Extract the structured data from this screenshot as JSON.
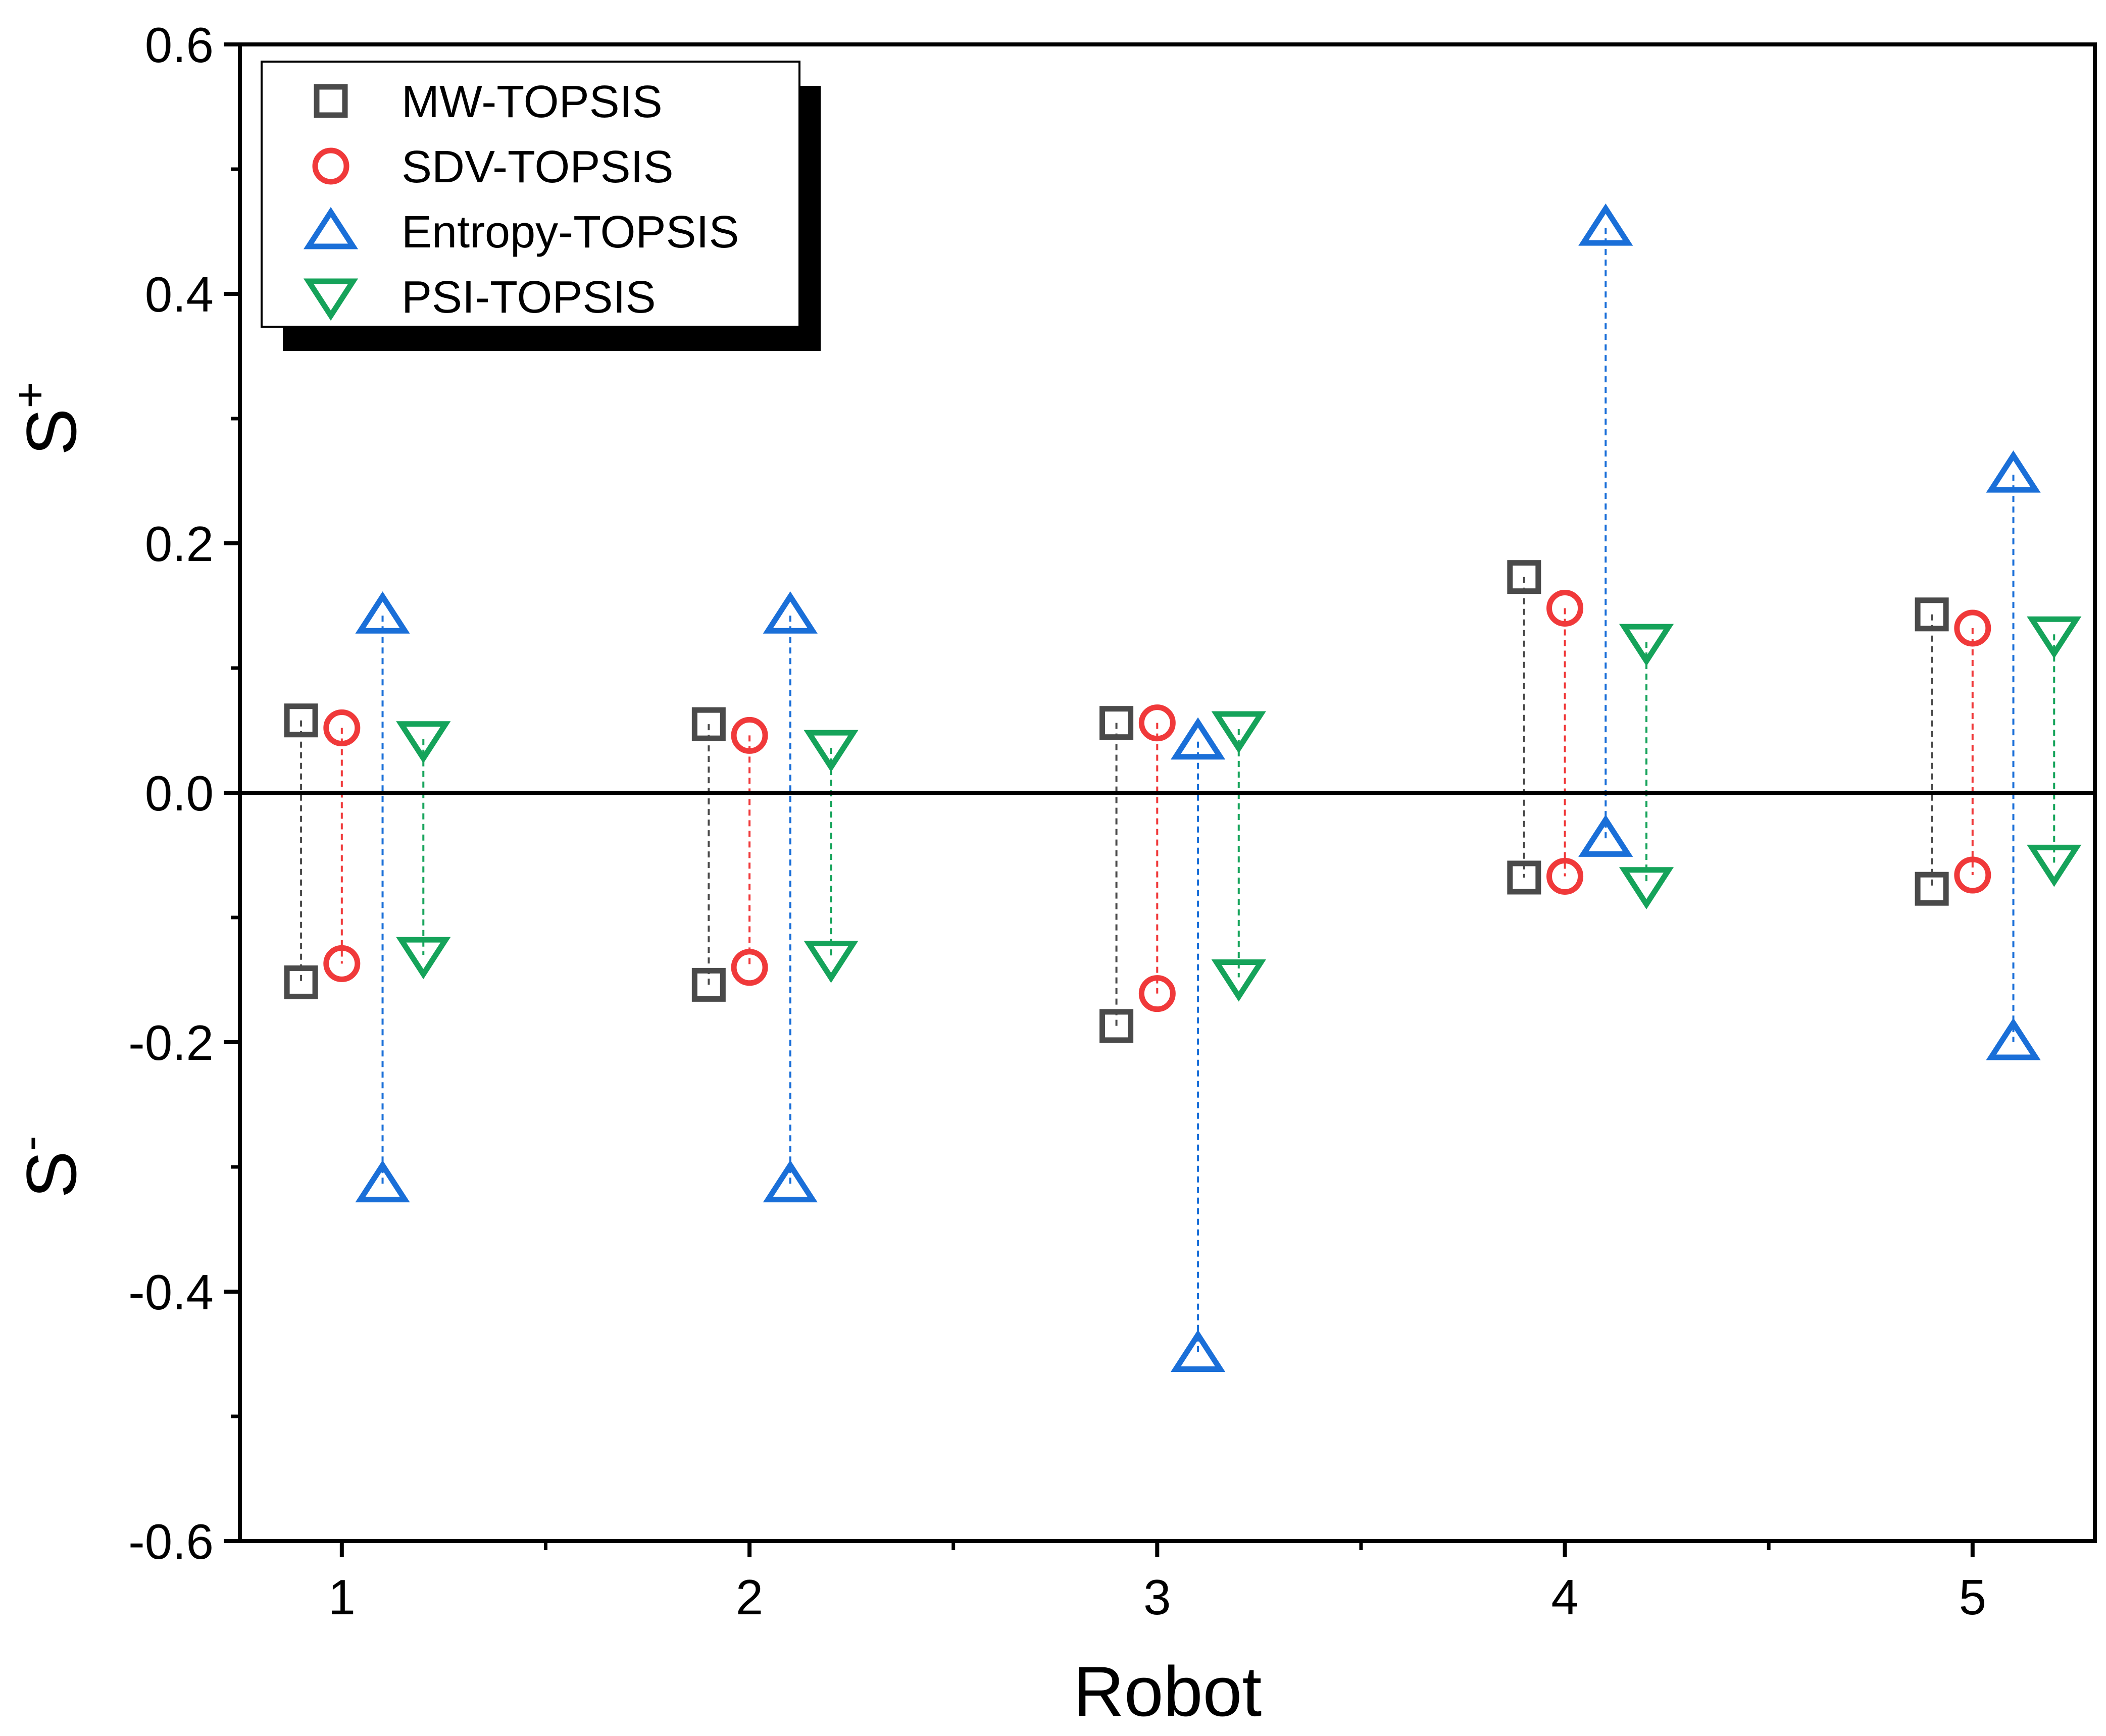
{
  "chart_data": {
    "type": "scatter",
    "xlabel": "Robot",
    "ylabel_top": {
      "main": "S",
      "sup": "+"
    },
    "ylabel_bottom": {
      "main": "S",
      "sup": "-"
    },
    "xlim": [
      0.75,
      5.3
    ],
    "ylim": [
      -0.6,
      0.6
    ],
    "x_ticks": [
      1,
      2,
      3,
      4,
      5
    ],
    "x_tick_labels": [
      "1",
      "2",
      "3",
      "4",
      "5"
    ],
    "y_ticks": [
      -0.6,
      -0.4,
      -0.2,
      0.0,
      0.2,
      0.4,
      0.6
    ],
    "y_tick_labels": [
      "-0.6",
      "-0.4",
      "-0.2",
      "0.0",
      "0.2",
      "0.4",
      "0.6"
    ],
    "y_minor_step": 0.1,
    "zero_line": true,
    "grid": false,
    "legend_position": "top-left",
    "series": [
      {
        "name": "MW-TOPSIS",
        "marker": "square",
        "color": "#4a4a4a",
        "x": [
          0.9,
          1.9,
          2.9,
          3.9,
          4.9
        ],
        "s_plus": [
          0.058,
          0.055,
          0.056,
          0.173,
          0.143
        ],
        "s_minus": [
          -0.152,
          -0.154,
          -0.187,
          -0.068,
          -0.077
        ]
      },
      {
        "name": "SDV-TOPSIS",
        "marker": "circle",
        "color": "#f0393a",
        "x": [
          1.0,
          2.0,
          3.0,
          4.0,
          5.0
        ],
        "s_plus": [
          0.052,
          0.046,
          0.056,
          0.148,
          0.132
        ],
        "s_minus": [
          -0.137,
          -0.14,
          -0.161,
          -0.067,
          -0.066
        ]
      },
      {
        "name": "Entropy-TOPSIS",
        "marker": "triangle-up",
        "color": "#1a6fd8",
        "x": [
          1.1,
          2.1,
          3.1,
          4.1,
          5.1
        ],
        "s_plus": [
          0.142,
          0.142,
          0.041,
          0.453,
          0.255
        ],
        "s_minus": [
          -0.314,
          -0.314,
          -0.45,
          -0.037,
          -0.2
        ]
      },
      {
        "name": "PSI-TOPSIS",
        "marker": "triangle-down",
        "color": "#15a35a",
        "x": [
          1.2,
          2.2,
          3.2,
          4.2,
          5.2
        ],
        "s_plus": [
          0.043,
          0.036,
          0.051,
          0.121,
          0.127
        ],
        "s_minus": [
          -0.13,
          -0.133,
          -0.148,
          -0.074,
          -0.056
        ]
      }
    ]
  }
}
